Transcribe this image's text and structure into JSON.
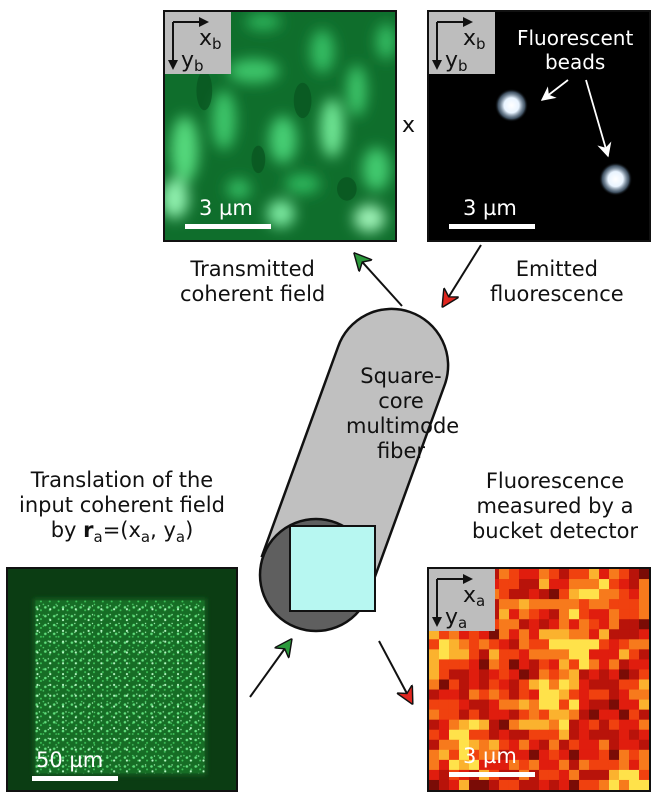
{
  "panels": {
    "transmitted": {
      "scale_label": "3 µm",
      "axis_x": "x",
      "axis_x_sub": "b",
      "axis_y": "y",
      "axis_y_sub": "b"
    },
    "emitted": {
      "scale_label": "3 µm",
      "axis_x": "x",
      "axis_x_sub": "b",
      "axis_y": "y",
      "axis_y_sub": "b"
    },
    "input": {
      "scale_label": "50 µm"
    },
    "bucket": {
      "scale_label": "3 µm",
      "axis_x": "x",
      "axis_x_sub": "a",
      "axis_y": "y",
      "axis_y_sub": "a"
    }
  },
  "labels": {
    "times": "x",
    "beads_line1": "Fluorescent",
    "beads_line2": "beads",
    "transmitted_line1": "Transmitted",
    "transmitted_line2": "coherent field",
    "emitted_line1": "Emitted",
    "emitted_line2": "fluorescence",
    "fiber_line1": "Square-",
    "fiber_line2": "core",
    "fiber_line3": "multimode",
    "fiber_line4": "fiber",
    "translation_line1": "Translation of the",
    "translation_line2": "input coherent field",
    "translation_by": "by ",
    "translation_r": "r",
    "translation_r_sub": "a",
    "translation_eq": "=(x",
    "translation_xa_sub": "a",
    "translation_comma": ", y",
    "translation_ya_sub": "a",
    "translation_close": ")",
    "bucket_line1": "Fluorescence",
    "bucket_line2": "measured by a",
    "bucket_line3": "bucket detector"
  },
  "colors": {
    "green_field": "#1f9a4a",
    "dark_green": "#0b3d13",
    "fiber_gray": "#c0c0c0",
    "fiber_dark": "#5f5f5f",
    "core_cyan": "#b7f7f1",
    "arrow_green": "#2c9a3c",
    "arrow_red": "#e0261f",
    "heat_red": "#e81a0e",
    "heat_yellow": "#ffe24a"
  }
}
